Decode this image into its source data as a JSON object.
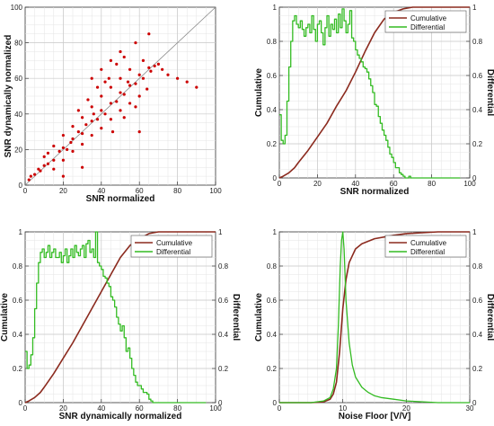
{
  "colors": {
    "cumulative": "#8b2a1e",
    "differential": "#33bb22",
    "scatter": "#cc0000",
    "diagonal": "#888888",
    "grid": "#c8c8c8"
  },
  "chart_data": [
    {
      "id": "scatter",
      "type": "scatter",
      "xlabel": "SNR normalized",
      "ylabel": "SNR dynamically normalized",
      "xlim": [
        0,
        100
      ],
      "ylim": [
        0,
        100
      ],
      "xticks": [
        "0",
        "20",
        "40",
        "60",
        "80",
        "100"
      ],
      "yticks": [
        "0",
        "20",
        "40",
        "60",
        "80",
        "100"
      ],
      "grid": true,
      "series": [
        {
          "values": [
            [
              2,
              3
            ],
            [
              5,
              6
            ],
            [
              8,
              8
            ],
            [
              10,
              11
            ],
            [
              12,
              12
            ],
            [
              15,
              14
            ],
            [
              18,
              19
            ],
            [
              20,
              21
            ],
            [
              22,
              20
            ],
            [
              25,
              26
            ],
            [
              28,
              30
            ],
            [
              30,
              29
            ],
            [
              32,
              34
            ],
            [
              35,
              36
            ],
            [
              38,
              37
            ],
            [
              40,
              42
            ],
            [
              42,
              40
            ],
            [
              45,
              46
            ],
            [
              48,
              47
            ],
            [
              50,
              52
            ],
            [
              52,
              51
            ],
            [
              55,
              56
            ],
            [
              58,
              57
            ],
            [
              60,
              62
            ],
            [
              62,
              60
            ],
            [
              65,
              66
            ],
            [
              68,
              67
            ],
            [
              10,
              16
            ],
            [
              15,
              22
            ],
            [
              20,
              28
            ],
            [
              25,
              33
            ],
            [
              30,
              38
            ],
            [
              35,
              44
            ],
            [
              40,
              50
            ],
            [
              45,
              55
            ],
            [
              50,
              60
            ],
            [
              55,
              65
            ],
            [
              15,
              9
            ],
            [
              20,
              14
            ],
            [
              25,
              19
            ],
            [
              30,
              23
            ],
            [
              35,
              28
            ],
            [
              40,
              32
            ],
            [
              45,
              37
            ],
            [
              50,
              42
            ],
            [
              55,
              46
            ],
            [
              60,
              50
            ],
            [
              70,
              68
            ],
            [
              72,
              65
            ],
            [
              75,
              62
            ],
            [
              80,
              60
            ],
            [
              85,
              58
            ],
            [
              90,
              55
            ],
            [
              35,
              60
            ],
            [
              40,
              65
            ],
            [
              45,
              70
            ],
            [
              50,
              75
            ],
            [
              30,
              10
            ],
            [
              20,
              5
            ],
            [
              60,
              30
            ],
            [
              58,
              80
            ],
            [
              65,
              85
            ],
            [
              62,
              70
            ],
            [
              38,
              55
            ],
            [
              44,
              60
            ],
            [
              48,
              68
            ],
            [
              52,
              72
            ],
            [
              28,
              42
            ],
            [
              33,
              48
            ],
            [
              42,
              58
            ],
            [
              46,
              30
            ],
            [
              52,
              38
            ],
            [
              58,
              44
            ],
            [
              64,
              54
            ],
            [
              12,
              18
            ],
            [
              7,
              9
            ],
            [
              3,
              5
            ],
            [
              24,
              24
            ],
            [
              36,
              40
            ],
            [
              54,
              58
            ],
            [
              66,
              64
            ]
          ]
        }
      ]
    },
    {
      "id": "snr-normalized-dist",
      "type": "line",
      "xlabel": "SNR normalized",
      "ylabel_left": "Cumulative",
      "ylabel_right": "Differential",
      "xlim": [
        0,
        100
      ],
      "ylim": [
        0,
        1
      ],
      "xticks": [
        "0",
        "20",
        "40",
        "60",
        "80",
        "100"
      ],
      "yticks": [
        "0",
        "0.2",
        "0.4",
        "0.6",
        "0.8",
        "1"
      ],
      "legend": "top-right",
      "grid": true,
      "series": [
        {
          "name": "Cumulative",
          "x": [
            0,
            2,
            5,
            8,
            10,
            15,
            20,
            25,
            30,
            35,
            40,
            45,
            50,
            55,
            60,
            65,
            70,
            75,
            80,
            90,
            100
          ],
          "values": [
            0,
            0.01,
            0.03,
            0.06,
            0.09,
            0.16,
            0.24,
            0.32,
            0.42,
            0.51,
            0.62,
            0.74,
            0.85,
            0.93,
            0.97,
            0.99,
            1,
            1,
            1,
            1,
            1
          ]
        },
        {
          "name": "Differential",
          "x": [
            0,
            1,
            2,
            3,
            4,
            5,
            6,
            7,
            8,
            9,
            10,
            11,
            12,
            13,
            14,
            15,
            16,
            17,
            18,
            19,
            20,
            21,
            22,
            23,
            24,
            25,
            26,
            27,
            28,
            29,
            30,
            31,
            32,
            33,
            34,
            35,
            36,
            37,
            38,
            39,
            40,
            41,
            42,
            43,
            44,
            45,
            46,
            47,
            48,
            49,
            50,
            51,
            52,
            53,
            54,
            55,
            56,
            57,
            58,
            59,
            60,
            61,
            62,
            63,
            64,
            65,
            66,
            67,
            68,
            69,
            70,
            75,
            80,
            85,
            90,
            95
          ],
          "values": [
            0.37,
            0.22,
            0.2,
            0.25,
            0.45,
            0.65,
            0.8,
            0.92,
            0.95,
            0.9,
            0.88,
            0.92,
            0.87,
            0.83,
            0.88,
            0.9,
            0.85,
            0.95,
            0.87,
            0.8,
            0.9,
            0.92,
            0.85,
            0.78,
            0.88,
            0.95,
            0.83,
            0.9,
            0.87,
            0.93,
            0.85,
            0.96,
            0.88,
            0.99,
            0.92,
            0.85,
            0.9,
            0.98,
            0.82,
            0.8,
            0.75,
            0.72,
            0.7,
            0.68,
            0.65,
            0.64,
            0.62,
            0.58,
            0.54,
            0.5,
            0.43,
            0.42,
            0.36,
            0.32,
            0.28,
            0.25,
            0.22,
            0.18,
            0.14,
            0.12,
            0.09,
            0.06,
            0.06,
            0.03,
            0.02,
            0.01,
            0,
            0,
            0.01,
            0,
            0,
            0,
            0,
            0,
            0,
            0
          ]
        }
      ]
    },
    {
      "id": "snr-dyn-dist",
      "type": "line",
      "xlabel": "SNR dynamically normalized",
      "ylabel_left": "Cumulative",
      "ylabel_right": "Differential",
      "xlim": [
        0,
        100
      ],
      "ylim": [
        0,
        1
      ],
      "xticks": [
        "0",
        "20",
        "40",
        "60",
        "80",
        "100"
      ],
      "yticks": [
        "0",
        "0.2",
        "0.4",
        "0.6",
        "0.8",
        "1"
      ],
      "legend": "top-right",
      "grid": true,
      "series": [
        {
          "name": "Cumulative",
          "x": [
            0,
            2,
            5,
            8,
            10,
            15,
            20,
            25,
            30,
            35,
            40,
            45,
            50,
            55,
            60,
            65,
            70,
            75,
            80,
            90,
            100
          ],
          "values": [
            0,
            0.01,
            0.03,
            0.06,
            0.09,
            0.17,
            0.26,
            0.35,
            0.45,
            0.55,
            0.65,
            0.75,
            0.85,
            0.92,
            0.96,
            0.99,
            1,
            1,
            1,
            1,
            1
          ]
        },
        {
          "name": "Differential",
          "x": [
            0,
            1,
            2,
            3,
            4,
            5,
            6,
            7,
            8,
            9,
            10,
            11,
            12,
            13,
            14,
            15,
            16,
            17,
            18,
            19,
            20,
            21,
            22,
            23,
            24,
            25,
            26,
            27,
            28,
            29,
            30,
            31,
            32,
            33,
            34,
            35,
            36,
            37,
            38,
            39,
            40,
            41,
            42,
            43,
            44,
            45,
            46,
            47,
            48,
            49,
            50,
            51,
            52,
            53,
            54,
            55,
            56,
            57,
            58,
            59,
            60,
            61,
            62,
            63,
            64,
            65,
            66,
            67,
            68,
            69,
            70,
            75,
            80,
            85,
            90,
            95
          ],
          "values": [
            0.3,
            0.2,
            0.22,
            0.28,
            0.38,
            0.55,
            0.7,
            0.82,
            0.88,
            0.9,
            0.85,
            0.88,
            0.92,
            0.85,
            0.88,
            0.9,
            0.85,
            0.85,
            0.88,
            0.82,
            0.86,
            0.9,
            0.82,
            0.86,
            0.9,
            0.85,
            0.92,
            0.88,
            0.86,
            0.9,
            0.92,
            0.85,
            0.93,
            0.95,
            0.88,
            0.9,
            0.85,
            1.0,
            0.82,
            0.8,
            0.78,
            0.74,
            0.73,
            0.7,
            0.68,
            0.62,
            0.6,
            0.56,
            0.5,
            0.46,
            0.42,
            0.45,
            0.38,
            0.3,
            0.32,
            0.26,
            0.2,
            0.16,
            0.12,
            0.1,
            0.1,
            0.08,
            0.06,
            0.06,
            0.05,
            0.02,
            0.01,
            0,
            0,
            0,
            0,
            0,
            0,
            0,
            0,
            0
          ]
        }
      ]
    },
    {
      "id": "noise-floor-dist",
      "type": "line",
      "xlabel": "Noise Floor [V/V]",
      "ylabel_left": "Cumulative",
      "ylabel_right": "Differential",
      "xlim": [
        0,
        30
      ],
      "ylim": [
        0,
        1
      ],
      "xticks": [
        "0",
        "10",
        "20",
        "30"
      ],
      "yticks": [
        "0",
        "0.2",
        "0.4",
        "0.6",
        "0.8",
        "1"
      ],
      "legend": "top-right",
      "grid": true,
      "series": [
        {
          "name": "Cumulative",
          "x": [
            0,
            5,
            7,
            8,
            8.5,
            9,
            9.5,
            10,
            10.5,
            11,
            12,
            13,
            15,
            18,
            20,
            25,
            30
          ],
          "values": [
            0,
            0,
            0.005,
            0.02,
            0.05,
            0.12,
            0.3,
            0.55,
            0.72,
            0.82,
            0.9,
            0.93,
            0.96,
            0.98,
            0.99,
            1,
            1
          ]
        },
        {
          "name": "Differential",
          "x": [
            0,
            5,
            7,
            8,
            8.5,
            9,
            9.3,
            9.6,
            9.8,
            10,
            10.2,
            10.5,
            11,
            11.5,
            12,
            13,
            14,
            15,
            16,
            18,
            20,
            25,
            30
          ],
          "values": [
            0,
            0,
            0.01,
            0.03,
            0.08,
            0.2,
            0.45,
            0.8,
            0.95,
            1.0,
            0.9,
            0.6,
            0.35,
            0.22,
            0.15,
            0.09,
            0.06,
            0.04,
            0.03,
            0.02,
            0.01,
            0,
            0
          ]
        }
      ]
    }
  ]
}
